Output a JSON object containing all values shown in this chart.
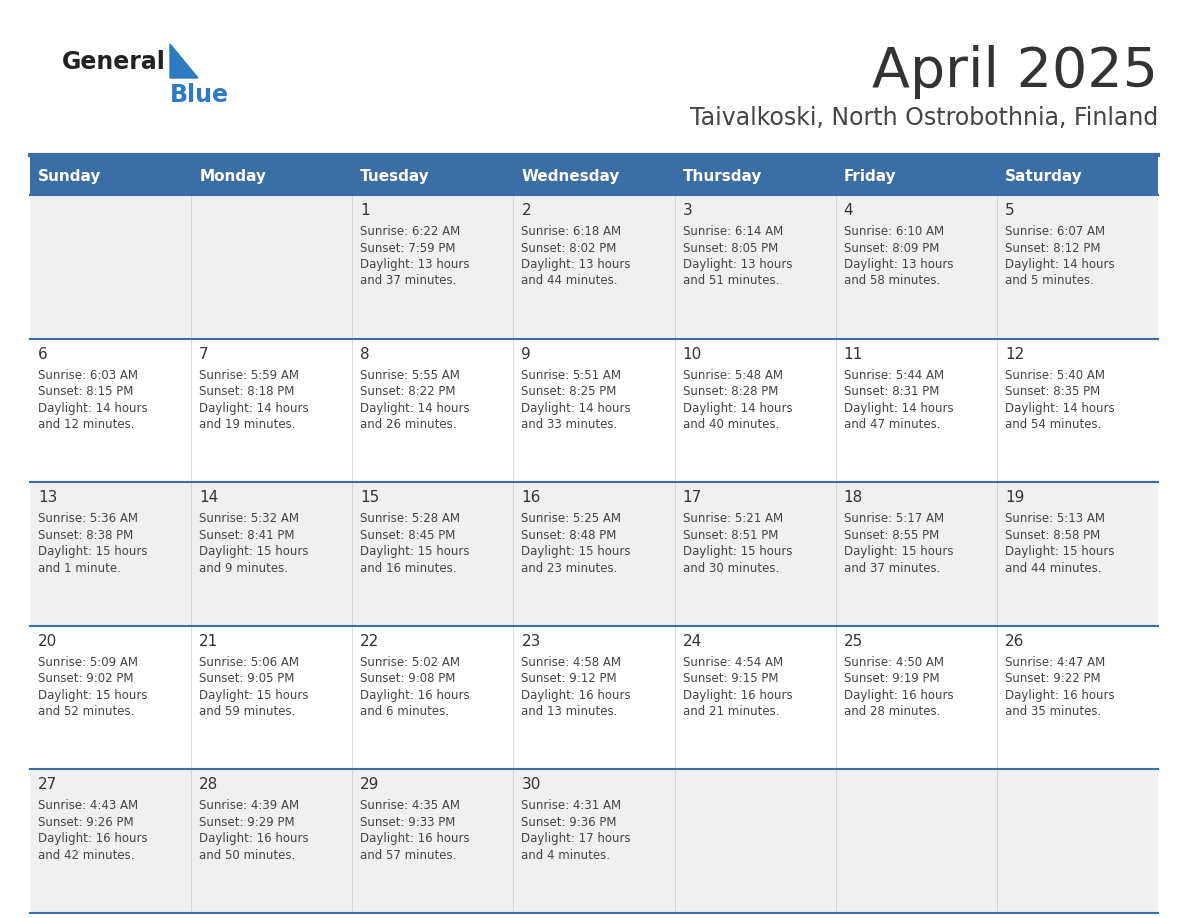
{
  "title": "April 2025",
  "subtitle": "Taivalkoski, North Ostrobothnia, Finland",
  "header_bg": "#3a6ea5",
  "header_text": "#ffffff",
  "row_bg_odd": "#f0f0f0",
  "row_bg_even": "#ffffff",
  "day_names": [
    "Sunday",
    "Monday",
    "Tuesday",
    "Wednesday",
    "Thursday",
    "Friday",
    "Saturday"
  ],
  "cell_text_color": "#444444",
  "day_number_color": "#333333",
  "grid_line_color": "#3a6ea5",
  "logo_general_color": "#222222",
  "logo_blue_color": "#2e7bbf",
  "logo_triangle_color": "#2e7bbf",
  "title_color": "#333333",
  "subtitle_color": "#444444",
  "calendar_data": [
    [
      {
        "day": null,
        "info": ""
      },
      {
        "day": null,
        "info": ""
      },
      {
        "day": 1,
        "info": "Sunrise: 6:22 AM\nSunset: 7:59 PM\nDaylight: 13 hours\nand 37 minutes."
      },
      {
        "day": 2,
        "info": "Sunrise: 6:18 AM\nSunset: 8:02 PM\nDaylight: 13 hours\nand 44 minutes."
      },
      {
        "day": 3,
        "info": "Sunrise: 6:14 AM\nSunset: 8:05 PM\nDaylight: 13 hours\nand 51 minutes."
      },
      {
        "day": 4,
        "info": "Sunrise: 6:10 AM\nSunset: 8:09 PM\nDaylight: 13 hours\nand 58 minutes."
      },
      {
        "day": 5,
        "info": "Sunrise: 6:07 AM\nSunset: 8:12 PM\nDaylight: 14 hours\nand 5 minutes."
      }
    ],
    [
      {
        "day": 6,
        "info": "Sunrise: 6:03 AM\nSunset: 8:15 PM\nDaylight: 14 hours\nand 12 minutes."
      },
      {
        "day": 7,
        "info": "Sunrise: 5:59 AM\nSunset: 8:18 PM\nDaylight: 14 hours\nand 19 minutes."
      },
      {
        "day": 8,
        "info": "Sunrise: 5:55 AM\nSunset: 8:22 PM\nDaylight: 14 hours\nand 26 minutes."
      },
      {
        "day": 9,
        "info": "Sunrise: 5:51 AM\nSunset: 8:25 PM\nDaylight: 14 hours\nand 33 minutes."
      },
      {
        "day": 10,
        "info": "Sunrise: 5:48 AM\nSunset: 8:28 PM\nDaylight: 14 hours\nand 40 minutes."
      },
      {
        "day": 11,
        "info": "Sunrise: 5:44 AM\nSunset: 8:31 PM\nDaylight: 14 hours\nand 47 minutes."
      },
      {
        "day": 12,
        "info": "Sunrise: 5:40 AM\nSunset: 8:35 PM\nDaylight: 14 hours\nand 54 minutes."
      }
    ],
    [
      {
        "day": 13,
        "info": "Sunrise: 5:36 AM\nSunset: 8:38 PM\nDaylight: 15 hours\nand 1 minute."
      },
      {
        "day": 14,
        "info": "Sunrise: 5:32 AM\nSunset: 8:41 PM\nDaylight: 15 hours\nand 9 minutes."
      },
      {
        "day": 15,
        "info": "Sunrise: 5:28 AM\nSunset: 8:45 PM\nDaylight: 15 hours\nand 16 minutes."
      },
      {
        "day": 16,
        "info": "Sunrise: 5:25 AM\nSunset: 8:48 PM\nDaylight: 15 hours\nand 23 minutes."
      },
      {
        "day": 17,
        "info": "Sunrise: 5:21 AM\nSunset: 8:51 PM\nDaylight: 15 hours\nand 30 minutes."
      },
      {
        "day": 18,
        "info": "Sunrise: 5:17 AM\nSunset: 8:55 PM\nDaylight: 15 hours\nand 37 minutes."
      },
      {
        "day": 19,
        "info": "Sunrise: 5:13 AM\nSunset: 8:58 PM\nDaylight: 15 hours\nand 44 minutes."
      }
    ],
    [
      {
        "day": 20,
        "info": "Sunrise: 5:09 AM\nSunset: 9:02 PM\nDaylight: 15 hours\nand 52 minutes."
      },
      {
        "day": 21,
        "info": "Sunrise: 5:06 AM\nSunset: 9:05 PM\nDaylight: 15 hours\nand 59 minutes."
      },
      {
        "day": 22,
        "info": "Sunrise: 5:02 AM\nSunset: 9:08 PM\nDaylight: 16 hours\nand 6 minutes."
      },
      {
        "day": 23,
        "info": "Sunrise: 4:58 AM\nSunset: 9:12 PM\nDaylight: 16 hours\nand 13 minutes."
      },
      {
        "day": 24,
        "info": "Sunrise: 4:54 AM\nSunset: 9:15 PM\nDaylight: 16 hours\nand 21 minutes."
      },
      {
        "day": 25,
        "info": "Sunrise: 4:50 AM\nSunset: 9:19 PM\nDaylight: 16 hours\nand 28 minutes."
      },
      {
        "day": 26,
        "info": "Sunrise: 4:47 AM\nSunset: 9:22 PM\nDaylight: 16 hours\nand 35 minutes."
      }
    ],
    [
      {
        "day": 27,
        "info": "Sunrise: 4:43 AM\nSunset: 9:26 PM\nDaylight: 16 hours\nand 42 minutes."
      },
      {
        "day": 28,
        "info": "Sunrise: 4:39 AM\nSunset: 9:29 PM\nDaylight: 16 hours\nand 50 minutes."
      },
      {
        "day": 29,
        "info": "Sunrise: 4:35 AM\nSunset: 9:33 PM\nDaylight: 16 hours\nand 57 minutes."
      },
      {
        "day": 30,
        "info": "Sunrise: 4:31 AM\nSunset: 9:36 PM\nDaylight: 17 hours\nand 4 minutes."
      },
      {
        "day": null,
        "info": ""
      },
      {
        "day": null,
        "info": ""
      },
      {
        "day": null,
        "info": ""
      }
    ]
  ]
}
